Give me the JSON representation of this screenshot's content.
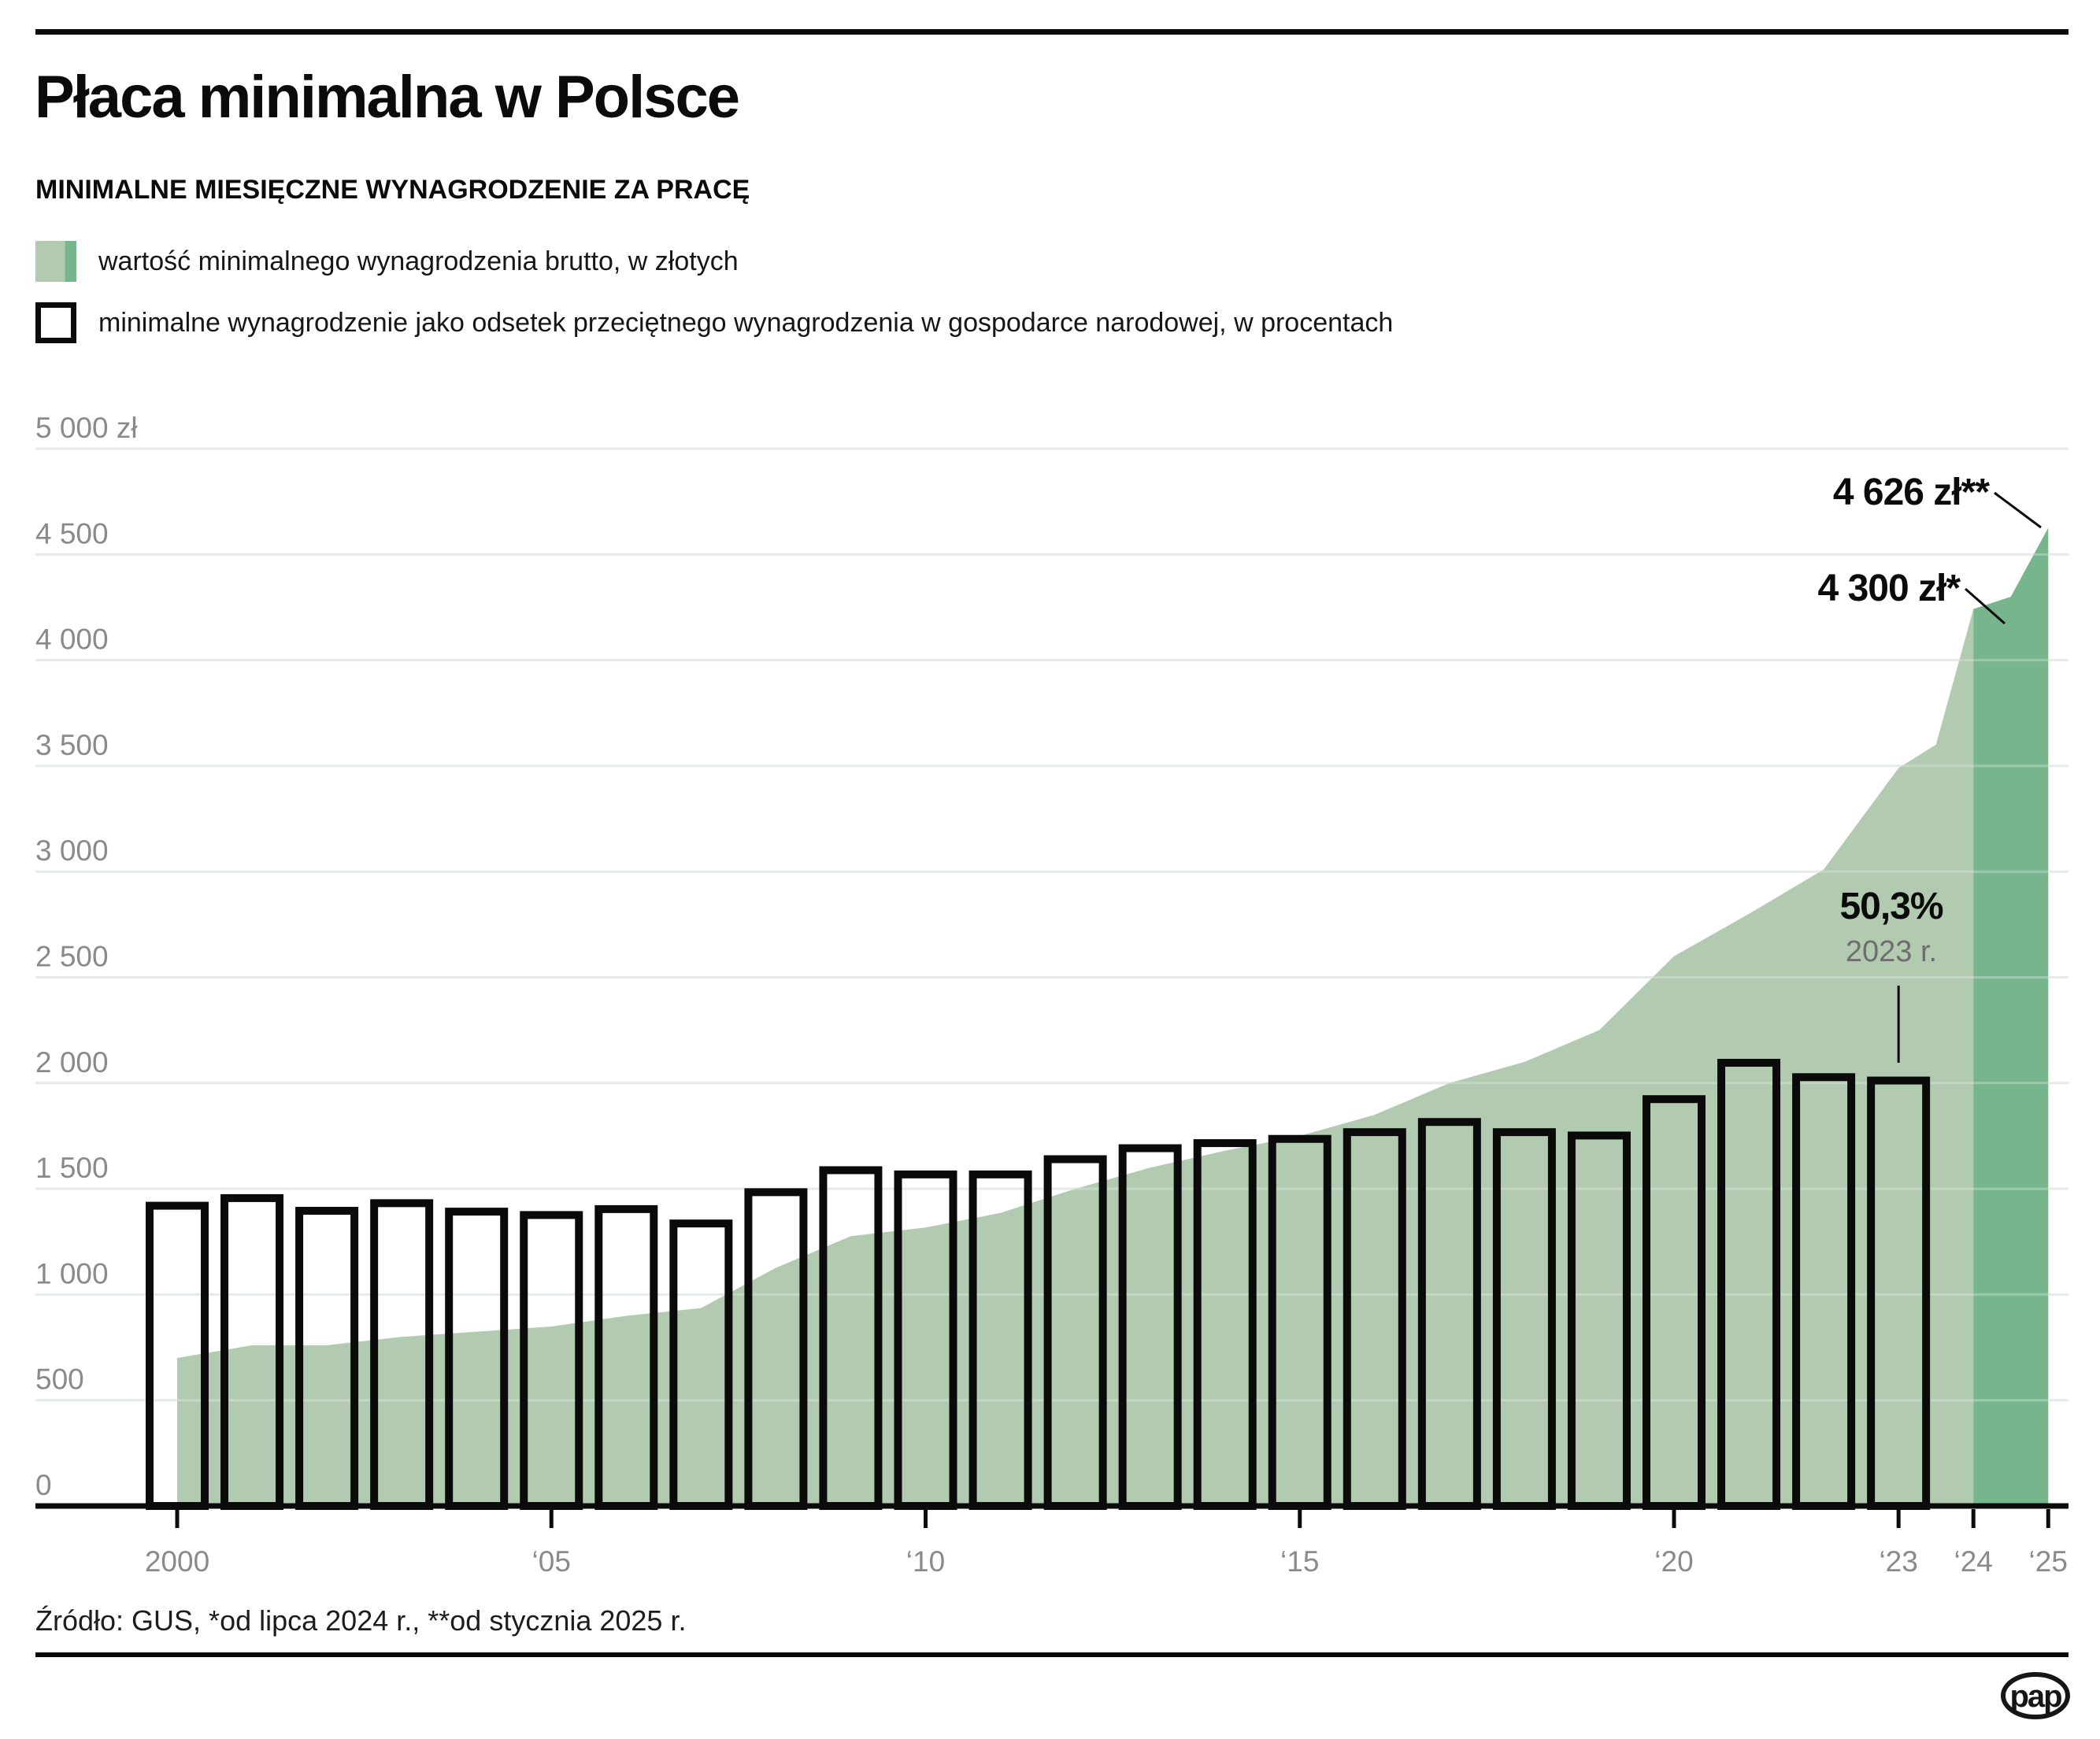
{
  "header": {
    "title": "Płaca minimalna w Polsce",
    "subtitle": "MINIMALNE MIESIĘCZNE WYNAGRODZENIE ZA PRACĘ"
  },
  "legend": {
    "items": [
      {
        "label": "wartość minimalnego wynagrodzenia brutto, w złotych",
        "swatch": "green-area"
      },
      {
        "label": "minimalne wynagrodzenie jako odsetek przeciętnego wynagrodzenia w gospodarce narodowej, w procentach",
        "swatch": "outlined-bar"
      }
    ]
  },
  "colors": {
    "area_light": "#b2cbb0",
    "area_dark": "#77b68c",
    "bar_stroke": "#0a0a0a",
    "axis": "#0b0b0b",
    "grid": "#e6ebea",
    "muted_text": "#8a8a8a"
  },
  "chart_data": {
    "type": "area",
    "subtype": "combo area (PLN values) + outlined bars (percent of average wage)",
    "title": "Płaca minimalna w Polsce",
    "xlabel": "",
    "ylabel": "zł",
    "ylim": [
      0,
      5000
    ],
    "grid": "horizontal",
    "legend_position": "top-left",
    "area_series": {
      "name": "wartość minimalnego wynagrodzenia brutto, w złotych",
      "unit": "zł",
      "points": [
        {
          "x": 2000,
          "y": 700
        },
        {
          "x": 2001,
          "y": 760
        },
        {
          "x": 2002,
          "y": 760
        },
        {
          "x": 2003,
          "y": 800
        },
        {
          "x": 2004,
          "y": 824
        },
        {
          "x": 2005,
          "y": 849
        },
        {
          "x": 2006,
          "y": 899
        },
        {
          "x": 2007,
          "y": 936
        },
        {
          "x": 2008,
          "y": 1126
        },
        {
          "x": 2009,
          "y": 1276
        },
        {
          "x": 2010,
          "y": 1317
        },
        {
          "x": 2011,
          "y": 1386
        },
        {
          "x": 2012,
          "y": 1500
        },
        {
          "x": 2013,
          "y": 1600
        },
        {
          "x": 2014,
          "y": 1680
        },
        {
          "x": 2015,
          "y": 1750
        },
        {
          "x": 2016,
          "y": 1850
        },
        {
          "x": 2017,
          "y": 2000
        },
        {
          "x": 2018,
          "y": 2100
        },
        {
          "x": 2019,
          "y": 2250
        },
        {
          "x": 2020,
          "y": 2600
        },
        {
          "x": 2021,
          "y": 2800
        },
        {
          "x": 2022,
          "y": 3010
        },
        {
          "x": 2023,
          "y": 3490
        },
        {
          "x": 2023.5,
          "y": 3600
        },
        {
          "x": 2024,
          "y": 4242
        },
        {
          "x": 2024.5,
          "y": 4300
        },
        {
          "x": 2025,
          "y": 4626
        }
      ],
      "dark_segment_from_x": 2024
    },
    "bar_series": {
      "name": "minimalne wynagrodzenie jako odsetek przeciętnego wynagrodzenia w gospodarce narodowej, w procentach",
      "unit": "%",
      "points": [
        {
          "x": 2000,
          "y": 35.5
        },
        {
          "x": 2001,
          "y": 36.4
        },
        {
          "x": 2002,
          "y": 34.9
        },
        {
          "x": 2003,
          "y": 35.8
        },
        {
          "x": 2004,
          "y": 34.8
        },
        {
          "x": 2005,
          "y": 34.4
        },
        {
          "x": 2006,
          "y": 35.1
        },
        {
          "x": 2007,
          "y": 33.4
        },
        {
          "x": 2008,
          "y": 37.1
        },
        {
          "x": 2009,
          "y": 39.7
        },
        {
          "x": 2010,
          "y": 39.2
        },
        {
          "x": 2011,
          "y": 39.2
        },
        {
          "x": 2012,
          "y": 41.0
        },
        {
          "x": 2013,
          "y": 42.3
        },
        {
          "x": 2014,
          "y": 42.9
        },
        {
          "x": 2015,
          "y": 43.4
        },
        {
          "x": 2016,
          "y": 44.2
        },
        {
          "x": 2017,
          "y": 45.4
        },
        {
          "x": 2018,
          "y": 44.2
        },
        {
          "x": 2019,
          "y": 43.8
        },
        {
          "x": 2020,
          "y": 48.1
        },
        {
          "x": 2021,
          "y": 52.4
        },
        {
          "x": 2022,
          "y": 50.7
        },
        {
          "x": 2023,
          "y": 50.3
        }
      ]
    },
    "y_axis": {
      "ticks": [
        {
          "value": 5000,
          "label": "5 000 zł"
        },
        {
          "value": 4500,
          "label": "4 500"
        },
        {
          "value": 4000,
          "label": "4 000"
        },
        {
          "value": 3500,
          "label": "3 500"
        },
        {
          "value": 3000,
          "label": "3 000"
        },
        {
          "value": 2500,
          "label": "2 500"
        },
        {
          "value": 2000,
          "label": "2 000"
        },
        {
          "value": 1500,
          "label": "1 500"
        },
        {
          "value": 1000,
          "label": "1 000"
        },
        {
          "value": 500,
          "label": "500"
        },
        {
          "value": 0,
          "label": "0"
        }
      ]
    },
    "x_axis": {
      "ticks": [
        {
          "x": 2000,
          "label": "2000"
        },
        {
          "x": 2005,
          "label": "‘05"
        },
        {
          "x": 2010,
          "label": "‘10"
        },
        {
          "x": 2015,
          "label": "‘15"
        },
        {
          "x": 2020,
          "label": "‘20"
        },
        {
          "x": 2023,
          "label": "‘23"
        },
        {
          "x": 2024,
          "label": "‘24"
        },
        {
          "x": 2025,
          "label": "‘25"
        }
      ]
    },
    "annotations": [
      {
        "id": "a4626",
        "text": "4 626 zł**",
        "points_to_x": 2025,
        "points_to_y": 4626
      },
      {
        "id": "a4300",
        "text": "4 300 zł*",
        "points_to_x": 2024.5,
        "points_to_y": 4300
      },
      {
        "id": "apct",
        "text": "50,3%",
        "sub": "2023 r.",
        "points_to_x": 2023
      }
    ]
  },
  "footer": {
    "source": "Źródło: GUS, *od lipca 2024 r., **od stycznia 2025 r.",
    "logo": "pap"
  }
}
